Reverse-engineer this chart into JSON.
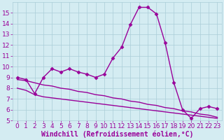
{
  "x": [
    0,
    1,
    2,
    3,
    4,
    5,
    6,
    7,
    8,
    9,
    10,
    11,
    12,
    13,
    14,
    15,
    16,
    17,
    18,
    19,
    20,
    21,
    22,
    23
  ],
  "main_line": [
    9.0,
    8.8,
    7.5,
    9.0,
    9.8,
    9.5,
    9.8,
    9.5,
    9.3,
    9.0,
    9.3,
    10.8,
    11.8,
    13.9,
    15.5,
    15.5,
    14.9,
    12.2,
    8.5,
    6.0,
    5.2,
    6.1,
    6.3,
    6.1
  ],
  "upper_line": [
    8.8,
    8.7,
    8.5,
    8.3,
    8.2,
    8.0,
    7.9,
    7.7,
    7.6,
    7.4,
    7.3,
    7.1,
    7.0,
    6.8,
    6.7,
    6.5,
    6.4,
    6.2,
    6.1,
    5.9,
    5.8,
    5.6,
    5.5,
    5.3
  ],
  "lower_line": [
    8.0,
    7.8,
    7.4,
    7.2,
    7.1,
    7.0,
    6.9,
    6.8,
    6.7,
    6.6,
    6.5,
    6.4,
    6.3,
    6.2,
    6.1,
    6.0,
    5.9,
    5.8,
    5.7,
    5.6,
    5.5,
    5.4,
    5.3,
    5.2
  ],
  "color": "#990099",
  "bg_color": "#d4ecf2",
  "grid_color": "#aacdd8",
  "xlabel": "Windchill (Refroidissement éolien,°C)",
  "ylim": [
    5,
    16
  ],
  "xlim": [
    -0.5,
    23.5
  ],
  "yticks": [
    5,
    6,
    7,
    8,
    9,
    10,
    11,
    12,
    13,
    14,
    15
  ],
  "xticks": [
    0,
    1,
    2,
    3,
    4,
    5,
    6,
    7,
    8,
    9,
    10,
    11,
    12,
    13,
    14,
    15,
    16,
    17,
    18,
    19,
    20,
    21,
    22,
    23
  ],
  "tick_fontsize": 6.5,
  "xlabel_fontsize": 7,
  "markersize": 2.5,
  "linewidth": 1.0
}
